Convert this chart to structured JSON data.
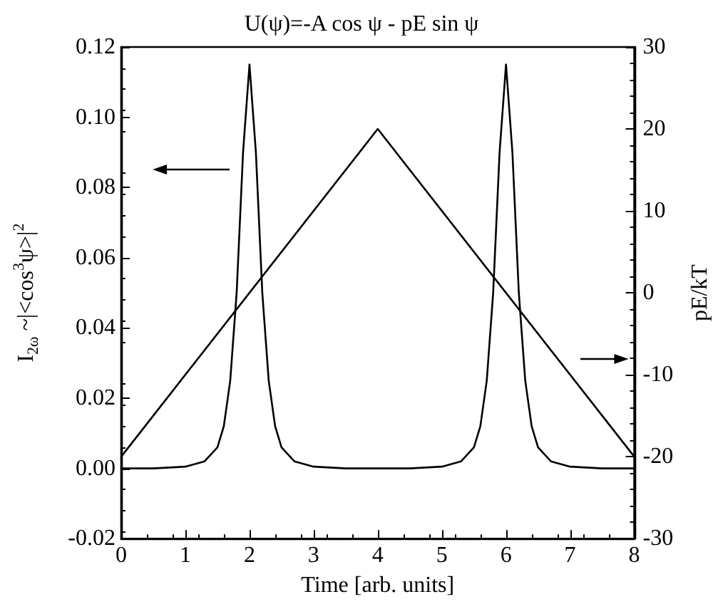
{
  "chart_data": {
    "type": "line",
    "title": "U(ψ)=-A cos ψ - pE sin ψ",
    "xlabel": "Time [arb. units]",
    "ylabel": "I$_{2ω}$ ~|<cos$^{3}$ψ>|$^{2}$",
    "y2label": "pE/kT",
    "series": [
      {
        "color": "#000000",
        "x": [
          0,
          0.5,
          1,
          1.3,
          1.5,
          1.6,
          1.7,
          1.8,
          1.9,
          2,
          2.1,
          2.2,
          2.3,
          2.4,
          2.5,
          2.7,
          3,
          3.5,
          4,
          4.5,
          5,
          5.3,
          5.5,
          5.6,
          5.7,
          5.8,
          5.9,
          6,
          6.1,
          6.2,
          6.3,
          6.4,
          6.5,
          6.7,
          7,
          7.5,
          8
        ],
        "values": [
          0,
          0,
          0.0005,
          0.002,
          0.006,
          0.012,
          0.025,
          0.05,
          0.09,
          0.115,
          0.09,
          0.05,
          0.025,
          0.012,
          0.006,
          0.002,
          0.0005,
          0,
          0,
          0,
          0.0005,
          0.002,
          0.006,
          0.012,
          0.025,
          0.05,
          0.09,
          0.115,
          0.09,
          0.05,
          0.025,
          0.012,
          0.006,
          0.002,
          0.0005,
          0,
          0
        ]
      },
      {
        "color": "#000000",
        "axis": "y2",
        "x": [
          0,
          4,
          8
        ],
        "values": [
          -20,
          20,
          -20
        ]
      }
    ],
    "xlim": [
      0,
      8
    ],
    "xticks": [
      0,
      1,
      2,
      3,
      4,
      5,
      6,
      7,
      8
    ],
    "ylim": [
      -0.02,
      0.12
    ],
    "yticks": [
      {
        "value": -0.02,
        "label": "-0.02"
      },
      {
        "value": 0,
        "label": "0.00"
      },
      {
        "value": 0.02,
        "label": "0.02"
      },
      {
        "value": 0.04,
        "label": "0.04"
      },
      {
        "value": 0.06,
        "label": "0.06"
      },
      {
        "value": 0.08,
        "label": "0.08"
      },
      {
        "value": 0.1,
        "label": "0.10"
      },
      {
        "value": 0.12,
        "label": "0.12"
      }
    ],
    "y2lim": [
      -30,
      30
    ],
    "y2ticks": [
      -30,
      -20,
      -10,
      0,
      10,
      20,
      30
    ],
    "grid": false,
    "marker": "none",
    "line_style": "solid"
  }
}
